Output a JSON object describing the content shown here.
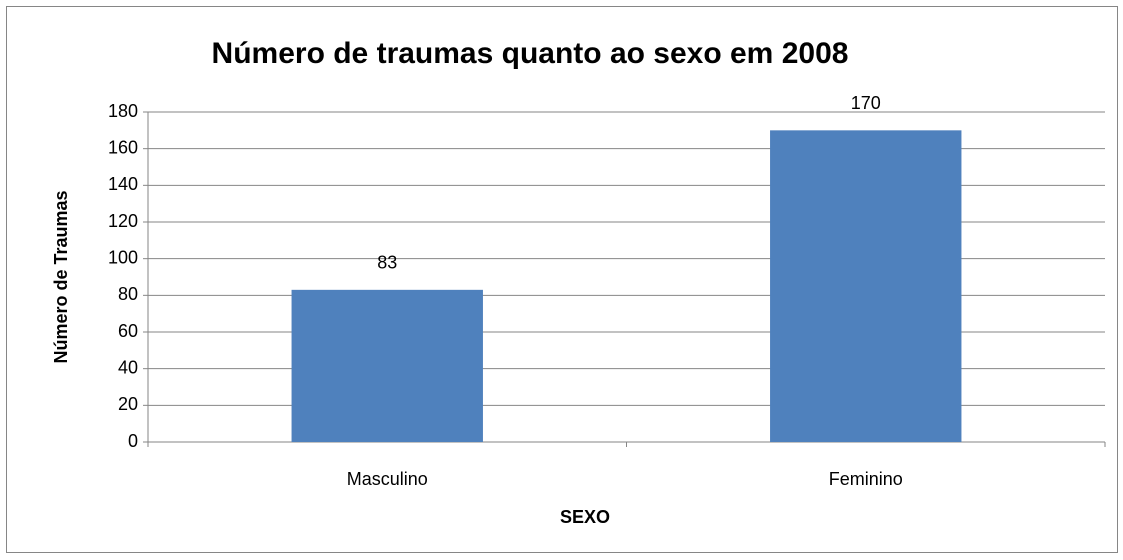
{
  "chart_data": {
    "type": "bar",
    "title": "Número de traumas quanto ao sexo em 2008",
    "categories": [
      "Masculino",
      "Feminino"
    ],
    "values": [
      83,
      170
    ],
    "color": "#4f81bd",
    "xlabel": "SEXO",
    "ylabel": "Número de Traumas",
    "ylim": [
      0,
      180
    ],
    "yticks": [
      0,
      20,
      40,
      60,
      80,
      100,
      120,
      140,
      160,
      180
    ],
    "grid": true
  }
}
